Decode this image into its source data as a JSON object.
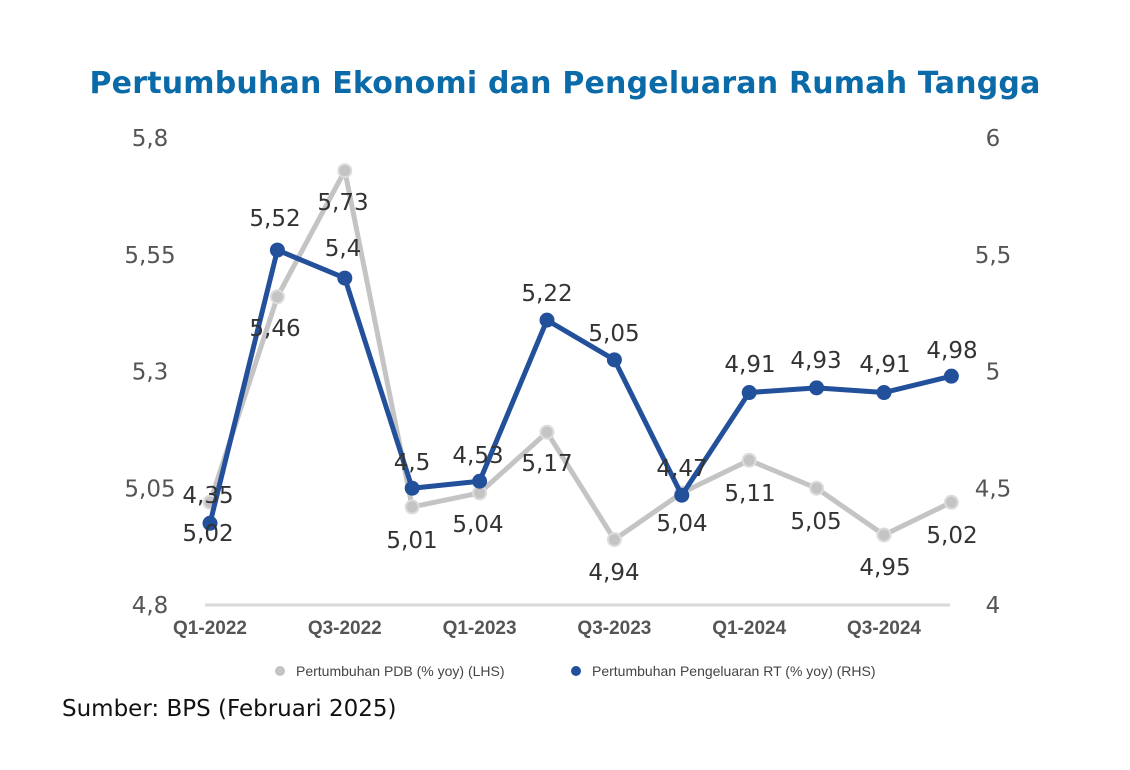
{
  "chart_data": {
    "type": "line",
    "title": "Pertumbuhan Ekonomi dan Pengeluaran Rumah Tangga",
    "source": "Sumber: BPS (Februari 2025)",
    "x": [
      "Q1-2022",
      "Q2-2022",
      "Q3-2022",
      "Q4-2022",
      "Q1-2023",
      "Q2-2023",
      "Q3-2023",
      "Q4-2023",
      "Q1-2024",
      "Q2-2024",
      "Q3-2024",
      "Q4-2024"
    ],
    "x_tick_labels": [
      "Q1-2022",
      "Q3-2022",
      "Q1-2023",
      "Q3-2023",
      "Q1-2024",
      "Q3-2024"
    ],
    "y_left": {
      "range": [
        4.8,
        5.8
      ],
      "ticks": [
        "4,8",
        "5,05",
        "5,3",
        "5,55",
        "5,8"
      ],
      "tick_values": [
        4.8,
        5.05,
        5.3,
        5.55,
        5.8
      ]
    },
    "y_right": {
      "range": [
        4,
        6
      ],
      "ticks": [
        "4",
        "4,5",
        "5",
        "5,5",
        "6"
      ],
      "tick_values": [
        4,
        4.5,
        5,
        5.5,
        6
      ]
    },
    "grid": false,
    "legend_position": "bottom",
    "series": [
      {
        "name": "Pertumbuhan PDB (% yoy) (LHS)",
        "axis": "left",
        "color": "#c4c4c4",
        "values": [
          5.02,
          5.46,
          5.73,
          5.01,
          5.04,
          5.17,
          4.94,
          5.04,
          5.11,
          5.05,
          4.95,
          5.02
        ],
        "labels": [
          "5,02",
          "5,46",
          "5,73",
          "5,01",
          "5,04",
          "5,17",
          "4,94",
          "5,04",
          "5,11",
          "5,05",
          "4,95",
          "5,02"
        ]
      },
      {
        "name": "Pertumbuhan Pengeluaran RT (% yoy) (RHS)",
        "axis": "right",
        "color": "#23509a",
        "values": [
          4.35,
          5.52,
          5.4,
          4.5,
          4.53,
          5.22,
          5.05,
          4.47,
          4.91,
          4.93,
          4.91,
          4.98
        ],
        "labels": [
          "4,35",
          "5,52",
          "5,4",
          "4,5",
          "4,53",
          "5,22",
          "5,05",
          "4,47",
          "4,91",
          "4,93",
          "4,91",
          "4,98"
        ]
      }
    ]
  }
}
